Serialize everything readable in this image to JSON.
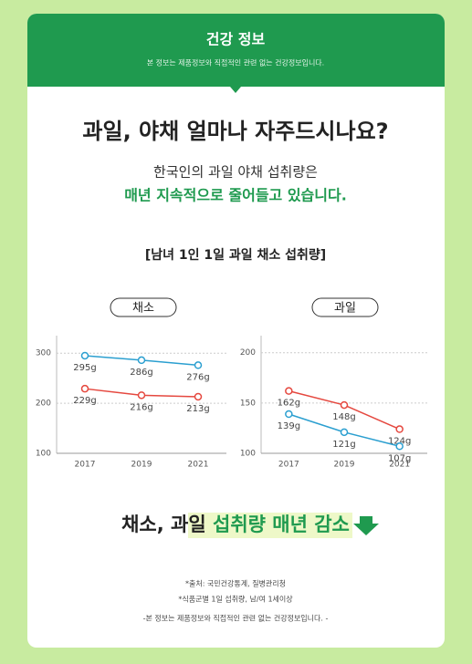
{
  "header": {
    "title": "건강 정보",
    "subtitle": "본 정보는 제품정보와 직접적인 관련 없는 건강정보입니다."
  },
  "headline": "과일, 야채 얼마나 자주드시나요?",
  "intro": [
    "한국인의 과일 야채 섭취량은",
    "매년 지속적으로 줄어들고 있습니다."
  ],
  "section_title": "[남녀 1인 1일 과일 채소 섭취량]",
  "chart_data": [
    {
      "type": "line",
      "title": "채소",
      "categories": [
        "2017",
        "2019",
        "2021"
      ],
      "series": [
        {
          "color": "#2b9fd0",
          "values": [
            295,
            286,
            276
          ],
          "value_labels": [
            "295g",
            "286g",
            "276g"
          ]
        },
        {
          "color": "#e5483f",
          "values": [
            229,
            216,
            213
          ],
          "value_labels": [
            "229g",
            "216g",
            "213g"
          ]
        }
      ],
      "ylim": [
        100,
        335
      ],
      "yticks": [
        100,
        200,
        300
      ],
      "grid": true
    },
    {
      "type": "line",
      "title": "과일",
      "categories": [
        "2017",
        "2019",
        "2021"
      ],
      "series": [
        {
          "color": "#e5483f",
          "values": [
            162,
            148,
            124
          ],
          "value_labels": [
            "162g",
            "148g",
            "124g"
          ]
        },
        {
          "color": "#2b9fd0",
          "values": [
            139,
            121,
            107
          ],
          "value_labels": [
            "139g",
            "121g",
            "107g"
          ]
        }
      ],
      "ylim": [
        100,
        217
      ],
      "yticks": [
        100,
        150,
        200
      ],
      "grid": true
    }
  ],
  "conclusion": [
    "채소, 과일",
    "섭취량 매년 감소"
  ],
  "footnotes": [
    "*출처: 국민건강통계, 질병관리청",
    "*식품군별 1일 섭취량, 남/여 1세이상",
    "-본 정보는 제품정보와 직접적인 관련 없는 건강정보입니다. -"
  ]
}
